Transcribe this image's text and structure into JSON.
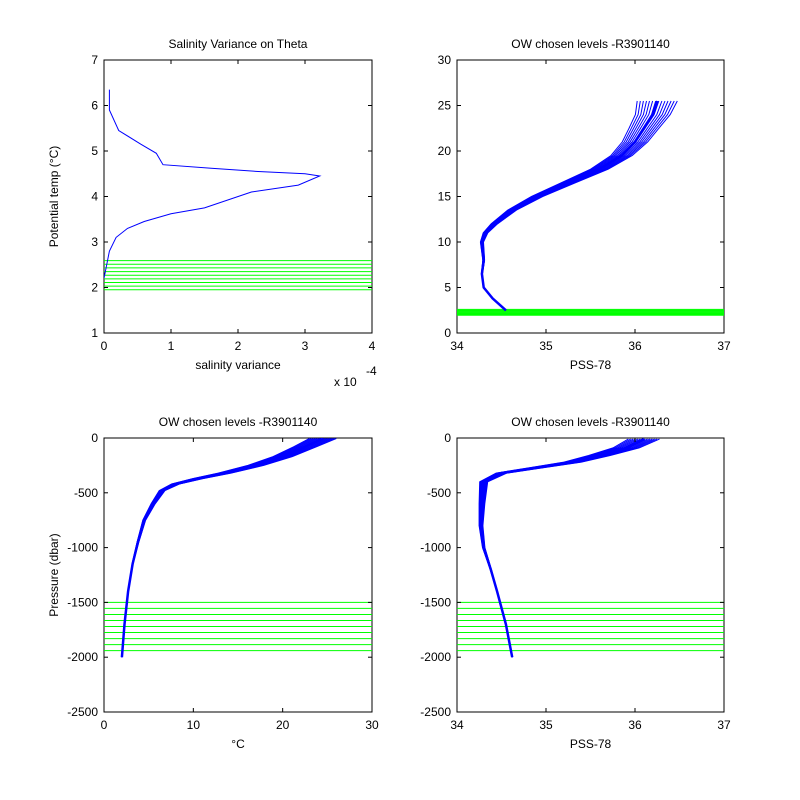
{
  "chart_data": [
    {
      "type": "line",
      "title": "Salinity Variance on Theta",
      "xlabel": "salinity variance",
      "ylabel": "Potential temp (°C)",
      "x_exponent_label": "x 10",
      "x_exponent_power": "-4",
      "xlim": [
        0,
        4
      ],
      "ylim": [
        1,
        7
      ],
      "x_ticks": [
        0,
        1,
        2,
        3,
        4
      ],
      "y_ticks": [
        1,
        2,
        3,
        4,
        5,
        6,
        7
      ],
      "grid": false,
      "colors": {
        "series": "#0000ff",
        "levels": "#00ff00"
      },
      "series": [
        {
          "x": [
            0.08,
            0.08,
            0.22,
            0.55,
            0.78,
            0.88,
            1.6,
            2.3,
            3.0,
            3.22,
            2.9,
            2.2,
            1.5,
            1.0,
            0.6,
            0.35,
            0.18,
            0.08,
            0.0
          ],
          "y": [
            6.35,
            5.9,
            5.45,
            5.15,
            4.95,
            4.7,
            4.62,
            4.55,
            4.5,
            4.45,
            4.25,
            4.1,
            3.75,
            3.62,
            3.45,
            3.3,
            3.1,
            2.8,
            2.2
          ]
        }
      ],
      "hlines": [
        1.95,
        2.03,
        2.11,
        2.19,
        2.27,
        2.35,
        2.43,
        2.51,
        2.59
      ]
    },
    {
      "type": "line",
      "title": "OW chosen levels -R3901140",
      "xlabel": "PSS-78",
      "ylabel": "",
      "xlim": [
        34,
        37
      ],
      "ylim": [
        0,
        30
      ],
      "x_ticks": [
        34,
        35,
        36,
        37
      ],
      "y_ticks": [
        0,
        5,
        10,
        15,
        20,
        25,
        30
      ],
      "grid": false,
      "colors": {
        "series": "#0000ff",
        "levels": "#00ff00"
      },
      "series": [
        {
          "x": [
            34.55,
            34.4,
            34.3,
            34.28,
            34.3,
            34.28,
            34.32,
            34.42,
            34.62,
            34.9,
            35.25,
            35.6,
            35.85,
            36.0,
            36.1,
            36.2,
            36.25
          ],
          "y": [
            2.5,
            3.8,
            5.0,
            6.5,
            8.0,
            10.0,
            11.0,
            12.0,
            13.5,
            15.0,
            16.5,
            18.0,
            19.5,
            21.0,
            22.5,
            24.0,
            25.5
          ]
        }
      ],
      "band_spread_x": 0.45,
      "hlines": [
        1.95,
        2.03,
        2.11,
        2.19,
        2.27,
        2.35,
        2.43,
        2.51,
        2.59
      ]
    },
    {
      "type": "line",
      "title": "OW chosen levels -R3901140",
      "xlabel": "°C",
      "ylabel": "Pressure (dbar)",
      "xlim": [
        0,
        30
      ],
      "ylim": [
        -2500,
        0
      ],
      "x_ticks": [
        0,
        10,
        20,
        30
      ],
      "y_ticks": [
        -2500,
        -2000,
        -1500,
        -1000,
        -500,
        0
      ],
      "grid": false,
      "colors": {
        "series": "#0000ff",
        "levels": "#00ff00"
      },
      "series": [
        {
          "x": [
            2.0,
            2.3,
            2.7,
            3.2,
            3.8,
            4.5,
            5.5,
            6.5,
            8.0,
            10.5,
            13.5,
            17.0,
            20.0,
            22.5,
            24.5
          ],
          "y": [
            -2000,
            -1700,
            -1400,
            -1150,
            -950,
            -750,
            -600,
            -480,
            -420,
            -370,
            -320,
            -250,
            -170,
            -80,
            -5
          ]
        }
      ],
      "band_spread_x": 3.0,
      "hlines": [
        -1500,
        -1555,
        -1610,
        -1665,
        -1720,
        -1775,
        -1830,
        -1885,
        -1940
      ]
    },
    {
      "type": "line",
      "title": "OW chosen levels -R3901140",
      "xlabel": "PSS-78",
      "ylabel": "",
      "xlim": [
        34,
        37
      ],
      "ylim": [
        -2500,
        0
      ],
      "x_ticks": [
        34,
        35,
        36,
        37
      ],
      "y_ticks": [
        -2500,
        -2000,
        -1500,
        -1000,
        -500,
        0
      ],
      "grid": false,
      "colors": {
        "series": "#0000ff",
        "levels": "#00ff00"
      },
      "series": [
        {
          "x": [
            34.62,
            34.55,
            34.45,
            34.38,
            34.3,
            34.27,
            34.28,
            34.3,
            34.5,
            34.9,
            35.3,
            35.6,
            35.9,
            36.1
          ],
          "y": [
            -2000,
            -1700,
            -1400,
            -1200,
            -1000,
            -800,
            -600,
            -400,
            -320,
            -270,
            -220,
            -160,
            -90,
            -10
          ]
        }
      ],
      "band_spread_x": 0.35,
      "hlines": [
        -1500,
        -1555,
        -1610,
        -1665,
        -1720,
        -1775,
        -1830,
        -1885,
        -1940
      ]
    }
  ]
}
